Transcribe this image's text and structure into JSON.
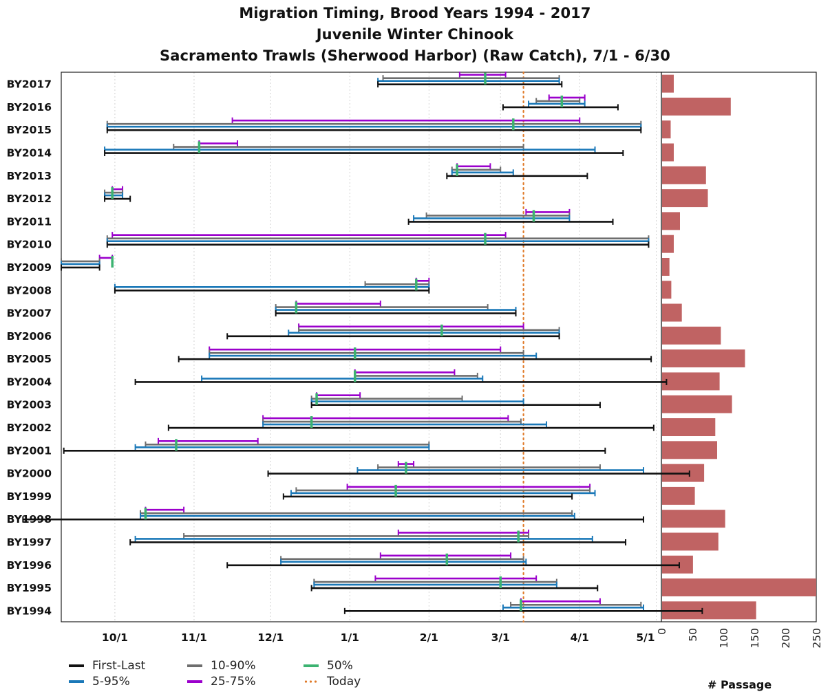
{
  "title_lines": [
    "Migration Timing, Brood Years 1994 - 2017",
    "Juvenile Winter Chinook",
    "Sacramento Trawls (Sherwood Harbor) (Raw Catch), 7/1 - 6/30"
  ],
  "legend": [
    {
      "label": "First-Last",
      "color": "#111111",
      "style": "solid"
    },
    {
      "label": "5-95%",
      "color": "#1a78b8",
      "style": "solid"
    },
    {
      "label": "10-90%",
      "color": "#6e6e6e",
      "style": "solid"
    },
    {
      "label": "25-75%",
      "color": "#9b00cc",
      "style": "solid"
    },
    {
      "label": "50%",
      "color": "#3cb371",
      "style": "solid"
    },
    {
      "label": "Today",
      "color": "#e07b2a",
      "style": "dotted"
    }
  ],
  "passage_xlabel": "# Passage",
  "chart_data": [
    {
      "type": "range",
      "title": "Migration Timing, Brood Years 1994 - 2017",
      "x_ticks": [
        "10/1",
        "11/1",
        "12/1",
        "1/1",
        "2/1",
        "3/1",
        "4/1",
        "5/1"
      ],
      "x_tick_days": [
        0,
        31,
        61,
        92,
        123,
        151,
        182,
        212
      ],
      "xlim_days": [
        -21,
        214
      ],
      "today_day": 160,
      "grid": true,
      "x_unit_note": "days since 10/1",
      "categories": [
        "BY2017",
        "BY2016",
        "BY2015",
        "BY2014",
        "BY2013",
        "BY2012",
        "BY2011",
        "BY2010",
        "BY2009",
        "BY2008",
        "BY2007",
        "BY2006",
        "BY2005",
        "BY2004",
        "BY2003",
        "BY2002",
        "BY2001",
        "BY2000",
        "BY1999",
        "BY1998",
        "BY1997",
        "BY1996",
        "BY1995",
        "BY1994"
      ],
      "series": [
        {
          "name": "First-Last",
          "color": "#111111",
          "ranges": [
            [
              103,
              175
            ],
            [
              152,
              197
            ],
            [
              -3,
              206
            ],
            [
              -4,
              199
            ],
            [
              130,
              185
            ],
            [
              -4,
              6
            ],
            [
              115,
              195
            ],
            [
              -3,
              209
            ],
            [
              -21,
              -6
            ],
            [
              0,
              123
            ],
            [
              63,
              157
            ],
            [
              44,
              174
            ],
            [
              25,
              210
            ],
            [
              8,
              216
            ],
            [
              77,
              190
            ],
            [
              21,
              211
            ],
            [
              -20,
              192
            ],
            [
              60,
              225
            ],
            [
              66,
              179
            ],
            [
              -36,
              207
            ],
            [
              6,
              200
            ],
            [
              44,
              221
            ],
            [
              77,
              189
            ],
            [
              90,
              230
            ]
          ]
        }
      ],
      "rows": [
        {
          "fl": [
            103,
            175
          ],
          "p5": [
            103,
            174
          ],
          "p10": [
            105,
            174
          ],
          "p25": [
            135,
            153
          ],
          "p50": 145
        },
        {
          "fl": [
            152,
            197
          ],
          "p5": [
            162,
            184
          ],
          "p10": [
            165,
            182
          ],
          "p25": [
            170,
            184
          ],
          "p50": 175
        },
        {
          "fl": [
            -3,
            206
          ],
          "p5": [
            -3,
            206
          ],
          "p10": [
            -3,
            206
          ],
          "p25": [
            46,
            182
          ],
          "p50": 156
        },
        {
          "fl": [
            -4,
            199
          ],
          "p5": [
            -4,
            188
          ],
          "p10": [
            23,
            160
          ],
          "p25": [
            33,
            48
          ],
          "p50": 33
        },
        {
          "fl": [
            130,
            185
          ],
          "p5": [
            132,
            156
          ],
          "p10": [
            132,
            151
          ],
          "p25": [
            134,
            147
          ],
          "p50": 134
        },
        {
          "fl": [
            -4,
            6
          ],
          "p5": [
            -4,
            3
          ],
          "p10": [
            -4,
            3
          ],
          "p25": [
            -1,
            3
          ],
          "p50": -1
        },
        {
          "fl": [
            115,
            195
          ],
          "p5": [
            117,
            178
          ],
          "p10": [
            122,
            178
          ],
          "p25": [
            161,
            178
          ],
          "p50": 164
        },
        {
          "fl": [
            -3,
            209
          ],
          "p5": [
            -3,
            209
          ],
          "p10": [
            -3,
            209
          ],
          "p25": [
            -1,
            153
          ],
          "p50": 145
        },
        {
          "fl": [
            -21,
            -6
          ],
          "p5": [
            -21,
            -6
          ],
          "p10": [
            -21,
            -6
          ],
          "p25": [
            -1,
            -6
          ],
          "p50": -1
        },
        {
          "fl": [
            0,
            123
          ],
          "p5": [
            0,
            123
          ],
          "p10": [
            98,
            123
          ],
          "p25": [
            118,
            123
          ],
          "p50": 118
        },
        {
          "fl": [
            63,
            157
          ],
          "p5": [
            63,
            157
          ],
          "p10": [
            63,
            146
          ],
          "p25": [
            71,
            104
          ],
          "p50": 71
        },
        {
          "fl": [
            44,
            174
          ],
          "p5": [
            68,
            174
          ],
          "p10": [
            72,
            174
          ],
          "p25": [
            72,
            160
          ],
          "p50": 128
        },
        {
          "fl": [
            25,
            210
          ],
          "p5": [
            37,
            165
          ],
          "p10": [
            37,
            160
          ],
          "p25": [
            37,
            151
          ],
          "p50": 94
        },
        {
          "fl": [
            8,
            216
          ],
          "p5": [
            34,
            144
          ],
          "p10": [
            94,
            142
          ],
          "p25": [
            94,
            133
          ],
          "p50": 94
        },
        {
          "fl": [
            77,
            190
          ],
          "p5": [
            77,
            160
          ],
          "p10": [
            77,
            136
          ],
          "p25": [
            79,
            96
          ],
          "p50": 79
        },
        {
          "fl": [
            21,
            211
          ],
          "p5": [
            58,
            169
          ],
          "p10": [
            58,
            159
          ],
          "p25": [
            58,
            154
          ],
          "p50": 77
        },
        {
          "fl": [
            -20,
            192
          ],
          "p5": [
            8,
            123
          ],
          "p10": [
            12,
            123
          ],
          "p25": [
            17,
            56
          ],
          "p50": 24
        },
        {
          "fl": [
            60,
            225
          ],
          "p5": [
            95,
            207
          ],
          "p10": [
            103,
            190
          ],
          "p25": [
            111,
            117
          ],
          "p50": 114
        },
        {
          "fl": [
            66,
            179
          ],
          "p5": [
            69,
            188
          ],
          "p10": [
            71,
            186
          ],
          "p25": [
            91,
            186
          ],
          "p50": 110
        },
        {
          "fl": [
            -36,
            207
          ],
          "p5": [
            10,
            180
          ],
          "p10": [
            10,
            179
          ],
          "p25": [
            12,
            27
          ],
          "p50": 12
        },
        {
          "fl": [
            6,
            200
          ],
          "p5": [
            8,
            187
          ],
          "p10": [
            27,
            162
          ],
          "p25": [
            111,
            162
          ],
          "p50": 158
        },
        {
          "fl": [
            44,
            221
          ],
          "p5": [
            65,
            161
          ],
          "p10": [
            65,
            160
          ],
          "p25": [
            104,
            155
          ],
          "p50": 130
        },
        {
          "fl": [
            77,
            189
          ],
          "p5": [
            78,
            173
          ],
          "p10": [
            78,
            173
          ],
          "p25": [
            102,
            165
          ],
          "p50": 151
        },
        {
          "fl": [
            90,
            230
          ],
          "p5": [
            152,
            207
          ],
          "p10": [
            155,
            206
          ],
          "p25": [
            159,
            190
          ],
          "p50": 159
        }
      ]
    },
    {
      "type": "bar",
      "orientation": "horizontal",
      "categories": [
        "BY2017",
        "BY2016",
        "BY2015",
        "BY2014",
        "BY2013",
        "BY2012",
        "BY2011",
        "BY2010",
        "BY2009",
        "BY2008",
        "BY2007",
        "BY2006",
        "BY2005",
        "BY2004",
        "BY2003",
        "BY2002",
        "BY2001",
        "BY2000",
        "BY1999",
        "BY1998",
        "BY1997",
        "BY1996",
        "BY1995",
        "BY1994"
      ],
      "values": [
        20,
        112,
        15,
        20,
        72,
        75,
        30,
        20,
        13,
        16,
        33,
        96,
        135,
        94,
        114,
        87,
        90,
        69,
        54,
        103,
        92,
        51,
        250,
        153
      ],
      "xlabel": "# Passage",
      "xlim": [
        0,
        250
      ],
      "x_ticks": [
        "0",
        "50",
        "100",
        "150",
        "200",
        "250"
      ],
      "color": "#c06363"
    }
  ]
}
